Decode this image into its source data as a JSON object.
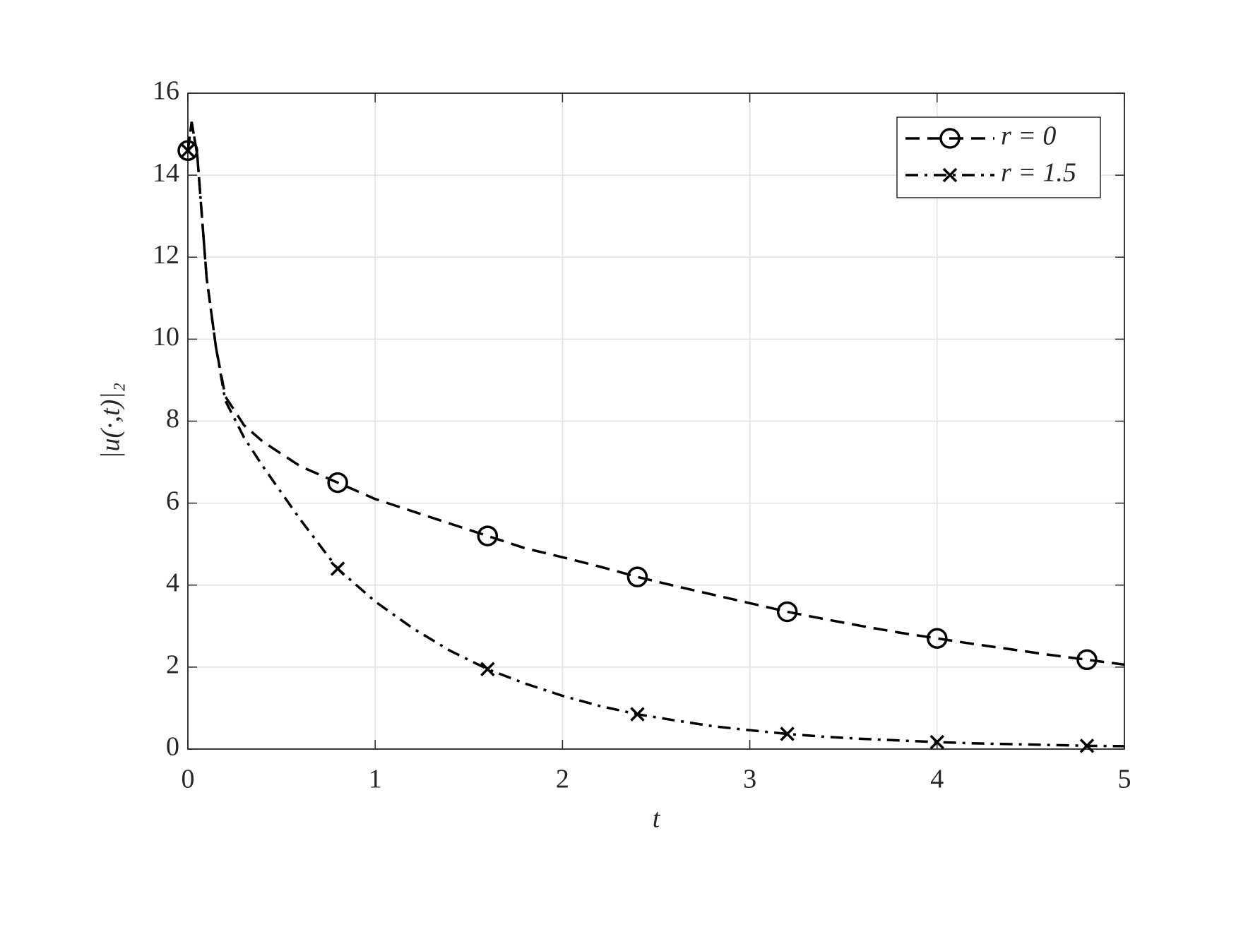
{
  "chart_data": {
    "type": "line",
    "xlabel": "t",
    "ylabel": "|u(·,t)|₂",
    "x": [
      0,
      0.02,
      0.05,
      0.1,
      0.15,
      0.2,
      0.3,
      0.4,
      0.6,
      0.8,
      1.0,
      1.2,
      1.4,
      1.6,
      1.8,
      2.0,
      2.2,
      2.4,
      2.6,
      2.8,
      3.0,
      3.2,
      3.4,
      3.6,
      3.8,
      4.0,
      4.2,
      4.4,
      4.6,
      4.8,
      5.0
    ],
    "series": [
      {
        "name": "r = 0",
        "color": "#000000",
        "linestyle": "dashed",
        "marker": "circle",
        "values": [
          14.6,
          15.3,
          14.5,
          11.5,
          9.8,
          8.6,
          7.9,
          7.5,
          6.9,
          6.5,
          6.1,
          5.8,
          5.5,
          5.2,
          4.9,
          4.68,
          4.45,
          4.2,
          3.98,
          3.77,
          3.56,
          3.35,
          3.17,
          3.0,
          2.84,
          2.7,
          2.56,
          2.43,
          2.3,
          2.18,
          2.06
        ]
      },
      {
        "name": "r = 1.5",
        "color": "#000000",
        "linestyle": "dashdot",
        "marker": "x",
        "values": [
          14.6,
          15.3,
          14.5,
          11.5,
          9.8,
          8.5,
          7.6,
          6.9,
          5.6,
          4.4,
          3.6,
          2.95,
          2.4,
          1.95,
          1.6,
          1.3,
          1.05,
          0.85,
          0.7,
          0.56,
          0.46,
          0.37,
          0.3,
          0.25,
          0.21,
          0.17,
          0.14,
          0.12,
          0.1,
          0.08,
          0.07
        ]
      }
    ],
    "marker_x_step": 0.8,
    "xlim": [
      0,
      5
    ],
    "xticks": [
      0,
      1,
      2,
      3,
      4,
      5
    ],
    "ylim": [
      0,
      16
    ],
    "yticks": [
      0,
      2,
      4,
      6,
      8,
      10,
      12,
      14,
      16
    ],
    "grid": true,
    "legend": "upper right"
  }
}
